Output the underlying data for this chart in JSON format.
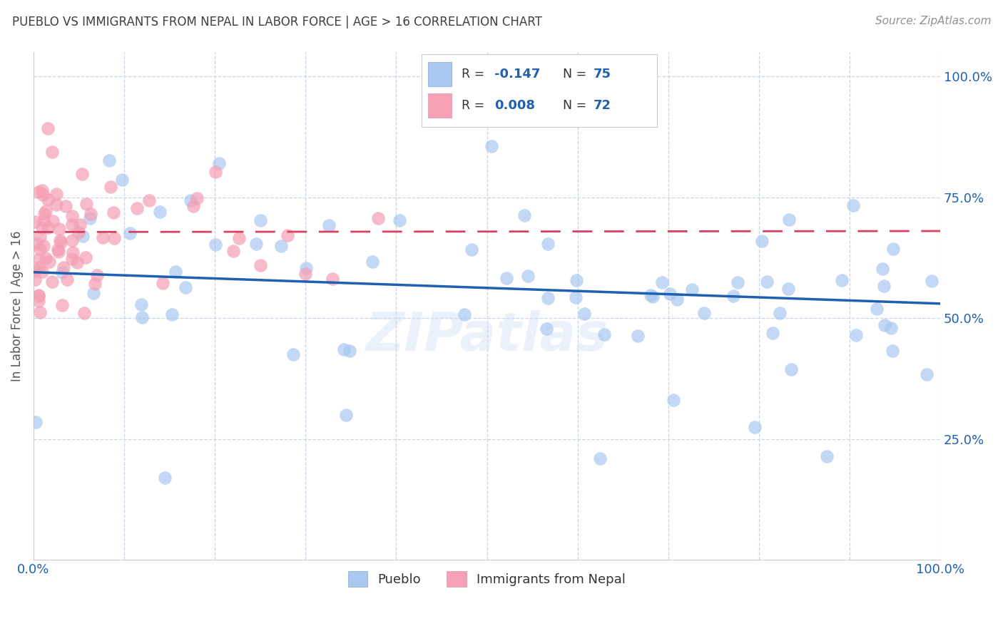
{
  "title": "PUEBLO VS IMMIGRANTS FROM NEPAL IN LABOR FORCE | AGE > 16 CORRELATION CHART",
  "source": "Source: ZipAtlas.com",
  "ylabel": "In Labor Force | Age > 16",
  "blue_R": -0.147,
  "blue_N": 75,
  "pink_R": 0.008,
  "pink_N": 72,
  "blue_dot_color": "#a8c8f0",
  "pink_dot_color": "#f5a0b5",
  "blue_line_color": "#2060b0",
  "pink_line_color": "#d84060",
  "title_color": "#404040",
  "source_color": "#909090",
  "label_color": "#2060b0",
  "tick_color": "#2060b0",
  "grid_color": "#c8d5e8",
  "bg_color": "#ffffff",
  "xlim": [
    0.0,
    1.0
  ],
  "ylim": [
    0.0,
    1.05
  ],
  "yticks": [
    0.25,
    0.5,
    0.75,
    1.0
  ],
  "ytick_labels": [
    "25.0%",
    "50.0%",
    "75.0%",
    "100.0%"
  ],
  "blue_line_x0": 0.0,
  "blue_line_y0": 0.595,
  "blue_line_x1": 1.0,
  "blue_line_y1": 0.53,
  "pink_line_x0": 0.0,
  "pink_line_y0": 0.678,
  "pink_line_x1": 1.0,
  "pink_line_y1": 0.68,
  "watermark": "ZIPatlas"
}
